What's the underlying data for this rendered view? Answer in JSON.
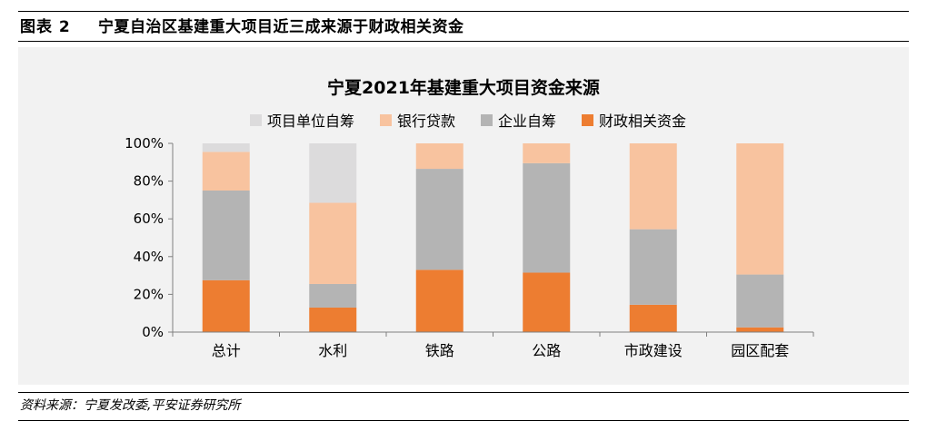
{
  "figure": {
    "label": "图表 2",
    "title": "宁夏自治区基建重大项目近三成来源于财政相关资金"
  },
  "source": "资料来源：宁夏发改委,平安证券研究所",
  "chart_data": {
    "type": "bar",
    "stacked": true,
    "title": "宁夏2021年基建重大项目资金来源",
    "categories": [
      "总计",
      "水利",
      "铁路",
      "公路",
      "市政建设",
      "园区配套"
    ],
    "ylim": [
      0,
      100
    ],
    "yticks": [
      "0%",
      "20%",
      "40%",
      "60%",
      "80%",
      "100%"
    ],
    "legend_position": "top",
    "grid": false,
    "series": [
      {
        "name": "财政相关资金",
        "color": "#ed7d31",
        "values": [
          27.5,
          13,
          33,
          31.5,
          14.5,
          2.5
        ]
      },
      {
        "name": "企业自筹",
        "color": "#b4b4b4",
        "values": [
          47.5,
          12.5,
          53.5,
          58,
          40,
          28
        ]
      },
      {
        "name": "银行贷款",
        "color": "#f8c39f",
        "values": [
          20.5,
          43,
          13.5,
          10.5,
          45.5,
          69.5
        ]
      },
      {
        "name": "项目单位自筹",
        "color": "#dcdbdc",
        "values": [
          4.5,
          31.5,
          0,
          0,
          0,
          0
        ]
      }
    ],
    "legend_order": [
      "项目单位自筹",
      "银行贷款",
      "企业自筹",
      "财政相关资金"
    ]
  }
}
